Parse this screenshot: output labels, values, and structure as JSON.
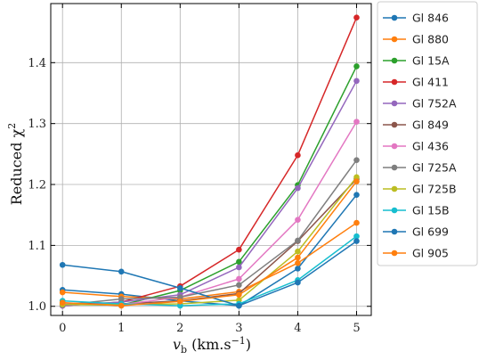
{
  "chart_data": {
    "type": "line",
    "title": "",
    "xlabel": "v_b (km.s^-1)",
    "xlabel_parts": {
      "main": "v",
      "sub": "b",
      "units": " (km.s",
      "sup": "−1",
      "close": ")"
    },
    "ylabel": "Reduced χ²",
    "ylabel_parts": {
      "main": "Reduced  χ",
      "sup": "2"
    },
    "x": [
      0,
      1,
      2,
      3,
      4,
      5
    ],
    "xlim": [
      -0.2,
      5.25
    ],
    "ylim": [
      0.985,
      1.497
    ],
    "xticks": [
      0,
      1,
      2,
      3,
      4,
      5
    ],
    "yticks": [
      1.0,
      1.1,
      1.2,
      1.3,
      1.4
    ],
    "ytick_labels": [
      "1.0",
      "1.1",
      "1.2",
      "1.3",
      "1.4"
    ],
    "grid": true,
    "legend_position": "outside-right",
    "series": [
      {
        "name": "Gl 846",
        "color": "#1f77b4",
        "values": [
          1.027,
          1.02,
          1.009,
          1.001,
          1.062,
          1.183
        ]
      },
      {
        "name": "Gl 880",
        "color": "#ff7f0e",
        "values": [
          1.023,
          1.016,
          1.012,
          1.024,
          1.071,
          1.137
        ]
      },
      {
        "name": "Gl 15A",
        "color": "#2ca02c",
        "values": [
          1.003,
          1.002,
          1.026,
          1.073,
          1.199,
          1.394
        ]
      },
      {
        "name": "Gl 411",
        "color": "#d62728",
        "values": [
          1.001,
          1.007,
          1.033,
          1.093,
          1.248,
          1.474
        ]
      },
      {
        "name": "Gl 752A",
        "color": "#9467bd",
        "values": [
          1.001,
          1.007,
          1.019,
          1.064,
          1.194,
          1.37
        ]
      },
      {
        "name": "Gl 849",
        "color": "#8c564b",
        "values": [
          1.005,
          1.004,
          1.009,
          1.021,
          1.107,
          1.209
        ]
      },
      {
        "name": "Gl 436",
        "color": "#e377c2",
        "values": [
          1.004,
          1.003,
          1.015,
          1.045,
          1.142,
          1.303
        ]
      },
      {
        "name": "Gl 725A",
        "color": "#7f7f7f",
        "values": [
          1.002,
          1.012,
          1.015,
          1.035,
          1.108,
          1.24
        ]
      },
      {
        "name": "Gl 725B",
        "color": "#bcbd22",
        "values": [
          1.003,
          1.003,
          1.004,
          1.01,
          1.09,
          1.212
        ]
      },
      {
        "name": "Gl 15B",
        "color": "#17becf",
        "values": [
          1.009,
          1.004,
          1.001,
          1.004,
          1.043,
          1.115
        ]
      },
      {
        "name": "Gl 699",
        "color": "#1f77b4",
        "values": [
          1.068,
          1.057,
          1.03,
          1.001,
          1.039,
          1.107
        ]
      },
      {
        "name": "Gl 905",
        "color": "#ff7f0e",
        "values": [
          1.006,
          1.001,
          1.008,
          1.019,
          1.08,
          1.205
        ]
      }
    ]
  }
}
